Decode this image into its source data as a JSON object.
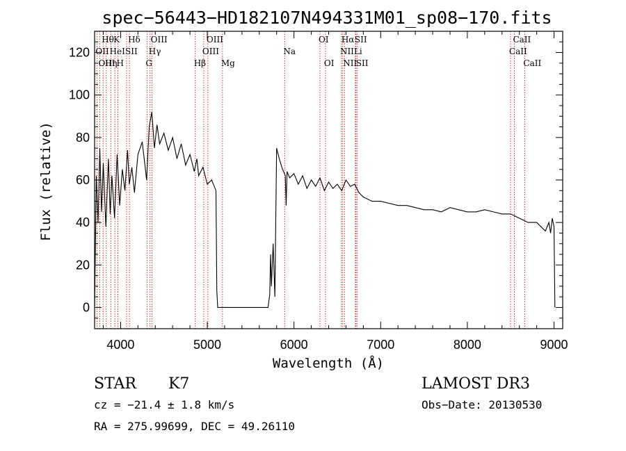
{
  "chart_data": {
    "type": "line",
    "title": "spec−56443−HD182107N494331M01_sp08−170.fits",
    "xlabel": "Wavelength (Å)",
    "ylabel": "Flux (relative)",
    "xlim": [
      3700,
      9100
    ],
    "ylim": [
      -10,
      130
    ],
    "x_ticks": [
      4000,
      5000,
      6000,
      7000,
      8000,
      9000
    ],
    "y_ticks": [
      0,
      20,
      40,
      60,
      80,
      100,
      120
    ],
    "grid": false,
    "series": [
      {
        "color": "#000000",
        "x": [
          3700,
          3720,
          3740,
          3760,
          3780,
          3800,
          3830,
          3860,
          3880,
          3900,
          3930,
          3960,
          3990,
          4020,
          4050,
          4080,
          4100,
          4130,
          4160,
          4200,
          4250,
          4300,
          4330,
          4360,
          4390,
          4420,
          4450,
          4500,
          4550,
          4600,
          4650,
          4700,
          4750,
          4800,
          4850,
          4880,
          4900,
          4950,
          5000,
          5050,
          5080,
          5100,
          5110,
          5120,
          5700,
          5720,
          5730,
          5740,
          5760,
          5780,
          5800,
          5830,
          5860,
          5880,
          5900,
          5910,
          5920,
          5950,
          6000,
          6050,
          6100,
          6150,
          6200,
          6250,
          6300,
          6350,
          6400,
          6450,
          6500,
          6550,
          6600,
          6650,
          6700,
          6750,
          6800,
          6900,
          7000,
          7100,
          7200,
          7300,
          7400,
          7500,
          7600,
          7700,
          7800,
          7900,
          8000,
          8100,
          8200,
          8300,
          8400,
          8500,
          8600,
          8700,
          8800,
          8850,
          8900,
          8940,
          8960,
          8980,
          9000,
          9010
        ],
        "values": [
          0,
          62,
          40,
          75,
          45,
          68,
          38,
          70,
          44,
          62,
          42,
          72,
          48,
          65,
          55,
          74,
          58,
          66,
          54,
          72,
          78,
          60,
          85,
          92,
          75,
          86,
          77,
          82,
          74,
          80,
          70,
          77,
          67,
          72,
          64,
          70,
          62,
          66,
          58,
          60,
          57,
          55,
          8,
          0,
          0,
          6,
          25,
          10,
          30,
          5,
          75,
          70,
          66,
          64,
          62,
          48,
          64,
          61,
          63,
          58,
          62,
          56,
          60,
          57,
          61,
          55,
          59,
          56,
          58,
          55,
          60,
          57,
          58,
          54,
          52,
          50,
          50,
          49,
          48,
          48,
          47,
          46,
          46,
          45,
          47,
          46,
          45,
          45,
          46,
          45,
          44,
          44,
          42,
          40,
          40,
          38,
          36,
          40,
          35,
          42,
          38,
          0
        ]
      }
    ],
    "spectral_lines": [
      {
        "label": "Hθ",
        "x": 3798,
        "row": 1
      },
      {
        "label": "OII",
        "x": 3727,
        "row": 2
      },
      {
        "label": "OIII",
        "x": 3760,
        "row": 3
      },
      {
        "label": "K",
        "x": 3934,
        "row": 1
      },
      {
        "label": "HeI",
        "x": 3889,
        "row": 2
      },
      {
        "label": "Hη",
        "x": 3835,
        "row": 3
      },
      {
        "label": "Hδ",
        "x": 4102,
        "row": 1
      },
      {
        "label": "SII",
        "x": 4069,
        "row": 2
      },
      {
        "label": "H",
        "x": 3969,
        "row": 3
      },
      {
        "label": "OIII",
        "x": 4363,
        "row": 1
      },
      {
        "label": "Hγ",
        "x": 4340,
        "row": 2
      },
      {
        "label": "G",
        "x": 4305,
        "row": 3
      },
      {
        "label": "OIII",
        "x": 5007,
        "row": 1
      },
      {
        "label": "OIII",
        "x": 4959,
        "row": 2
      },
      {
        "label": "Hβ",
        "x": 4861,
        "row": 3
      },
      {
        "label": "Mg",
        "x": 5175,
        "row": 3
      },
      {
        "label": "Na",
        "x": 5893,
        "row": 2
      },
      {
        "label": "OI",
        "x": 6300,
        "row": 1
      },
      {
        "label": "OI",
        "x": 6363,
        "row": 3
      },
      {
        "label": "Hα",
        "x": 6563,
        "row": 1
      },
      {
        "label": "SII",
        "x": 6716,
        "row": 1
      },
      {
        "label": "NII",
        "x": 6548,
        "row": 2
      },
      {
        "label": "Li",
        "x": 6708,
        "row": 2
      },
      {
        "label": "NII",
        "x": 6583,
        "row": 3
      },
      {
        "label": "SII",
        "x": 6731,
        "row": 3
      },
      {
        "label": "CaII",
        "x": 8542,
        "row": 1
      },
      {
        "label": "CaII",
        "x": 8498,
        "row": 2
      },
      {
        "label": "CaII",
        "x": 8662,
        "row": 3
      }
    ]
  },
  "info": {
    "object_type": "STAR",
    "subclass": "K7",
    "survey": "LAMOST DR3",
    "cz": "cz = −21.4 ± 1.8 km/s",
    "obs_date": "Obs−Date: 20130530",
    "radec": "RA = 275.99699, DEC =  49.26110"
  },
  "colors": {
    "spectrum": "#000000",
    "line_markers": "#cc0000",
    "axes": "#000000"
  }
}
